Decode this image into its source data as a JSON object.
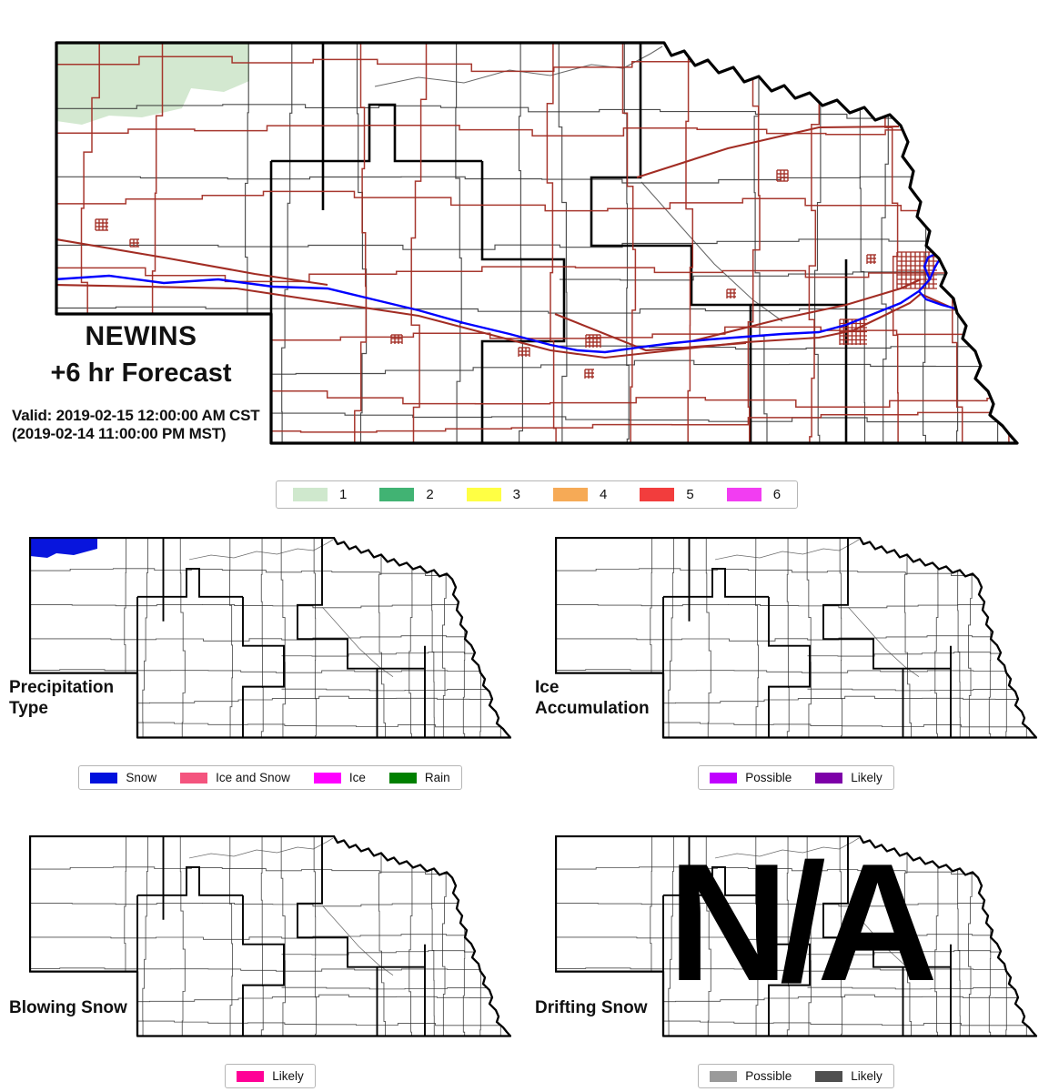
{
  "header": {
    "title_line1": "NEWINS",
    "title_line2": "+6 hr Forecast",
    "valid_line1": "Valid: 2019-02-15 12:00:00 AM CST",
    "valid_line2": "(2019-02-14 11:00:00 PM MST)"
  },
  "severity_legend": {
    "items": [
      {
        "label": "1",
        "color": "#cfe8cd"
      },
      {
        "label": "2",
        "color": "#41b373"
      },
      {
        "label": "3",
        "color": "#ffff44"
      },
      {
        "label": "4",
        "color": "#f6aa56"
      },
      {
        "label": "5",
        "color": "#f23d3d"
      },
      {
        "label": "6",
        "color": "#f23df2"
      }
    ]
  },
  "panels": [
    {
      "title_lines": [
        "Precipitation",
        "Type"
      ],
      "legend": [
        {
          "label": "Snow",
          "color": "#0011dd"
        },
        {
          "label": "Ice and Snow",
          "color": "#f4547e"
        },
        {
          "label": "Ice",
          "color": "#ff00ff"
        },
        {
          "label": "Rain",
          "color": "#008000"
        }
      ]
    },
    {
      "title_lines": [
        "Ice",
        "Accumulation"
      ],
      "legend": [
        {
          "label": "Possible",
          "color": "#c000ff"
        },
        {
          "label": "Likely",
          "color": "#7d00a8"
        }
      ]
    },
    {
      "title_lines": [
        "Blowing Snow"
      ],
      "legend": [
        {
          "label": "Likely",
          "color": "#ff0096"
        }
      ]
    },
    {
      "title_lines": [
        "Drifting Snow"
      ],
      "overlay_text": "N/A",
      "legend": [
        {
          "label": "Possible",
          "color": "#9a9a9a"
        },
        {
          "label": "Likely",
          "color": "#4f4f4f"
        }
      ]
    }
  ],
  "map": {
    "colors": {
      "state_border": "#000000",
      "county_line": "#2e2e2e",
      "district_line": "#000000",
      "road": "#a22d24",
      "river": "#0000ff",
      "stream": "#444444",
      "main_highlight": "#d3e8d0",
      "precip_snow_region": "#0815dd"
    }
  }
}
